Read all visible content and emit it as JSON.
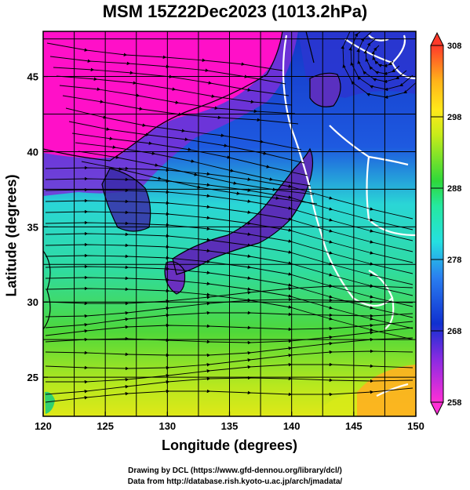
{
  "title": "MSM 15Z22Dec2023 (1013.2hPa)",
  "xlabel": "Longitude (degrees)",
  "ylabel": "Latitude  (degrees)",
  "x_ticks": [
    "120",
    "125",
    "130",
    "135",
    "140",
    "145",
    "150"
  ],
  "y_ticks": [
    "25",
    "30",
    "35",
    "40",
    "45"
  ],
  "colorbar_ticks": [
    "308",
    "298",
    "288",
    "278",
    "268",
    "258"
  ],
  "credits": {
    "line1": "Drawing by DCL (https://www.gfd-dennou.org/library/dcl/)",
    "line2": "Data from http://database.rish.kyoto-u.ac.jp/arch/jmadata/"
  },
  "map": {
    "lon_range": [
      120,
      150
    ],
    "lat_range": [
      22.4,
      48
    ],
    "colorbar_range": [
      258,
      308
    ],
    "field": "temperature",
    "streamlines": "wind"
  },
  "colors": {
    "cold": "#ff00cc",
    "cool": "#1a3fd6",
    "mid": "#22d8d0",
    "warm": "#33cc33",
    "hot": "#ff9900",
    "contour": "#ffffff"
  }
}
